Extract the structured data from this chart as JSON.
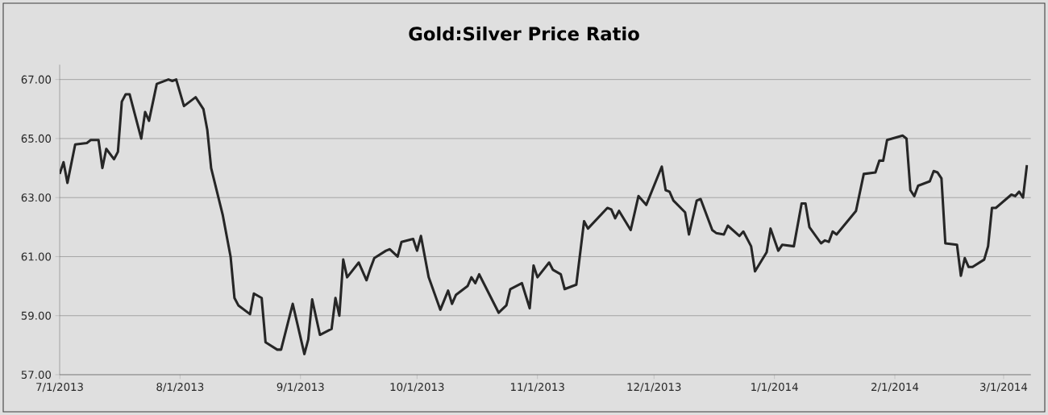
{
  "chart_data": {
    "type": "line",
    "title": "Gold:Silver Price Ratio",
    "x": [
      "2013-07-01",
      "2013-07-02",
      "2013-07-03",
      "2013-07-05",
      "2013-07-08",
      "2013-07-09",
      "2013-07-11",
      "2013-07-12",
      "2013-07-13",
      "2013-07-15",
      "2013-07-16",
      "2013-07-17",
      "2013-07-18",
      "2013-07-19",
      "2013-07-22",
      "2013-07-23",
      "2013-07-24",
      "2013-07-26",
      "2013-07-29",
      "2013-07-30",
      "2013-07-31",
      "2013-08-02",
      "2013-08-05",
      "2013-08-07",
      "2013-08-08",
      "2013-08-09",
      "2013-08-12",
      "2013-08-14",
      "2013-08-15",
      "2013-08-16",
      "2013-08-19",
      "2013-08-20",
      "2013-08-22",
      "2013-08-23",
      "2013-08-26",
      "2013-08-27",
      "2013-08-30",
      "2013-09-02",
      "2013-09-03",
      "2013-09-04",
      "2013-09-06",
      "2013-09-09",
      "2013-09-10",
      "2013-09-11",
      "2013-09-12",
      "2013-09-13",
      "2013-09-16",
      "2013-09-18",
      "2013-09-19",
      "2013-09-20",
      "2013-09-23",
      "2013-09-24",
      "2013-09-26",
      "2013-09-27",
      "2013-09-30",
      "2013-10-01",
      "2013-10-02",
      "2013-10-04",
      "2013-10-07",
      "2013-10-09",
      "2013-10-10",
      "2013-10-11",
      "2013-10-14",
      "2013-10-15",
      "2013-10-16",
      "2013-10-17",
      "2013-10-22",
      "2013-10-24",
      "2013-10-25",
      "2013-10-28",
      "2013-10-30",
      "2013-10-31",
      "2013-11-01",
      "2013-11-04",
      "2013-11-05",
      "2013-11-07",
      "2013-11-08",
      "2013-11-11",
      "2013-11-13",
      "2013-11-14",
      "2013-11-19",
      "2013-11-20",
      "2013-11-21",
      "2013-11-22",
      "2013-11-25",
      "2013-11-27",
      "2013-11-29",
      "2013-12-03",
      "2013-12-04",
      "2013-12-05",
      "2013-12-06",
      "2013-12-09",
      "2013-12-10",
      "2013-12-12",
      "2013-12-13",
      "2013-12-16",
      "2013-12-17",
      "2013-12-19",
      "2013-12-20",
      "2013-12-23",
      "2013-12-24",
      "2013-12-26",
      "2013-12-27",
      "2013-12-30",
      "2013-12-31",
      "2014-01-02",
      "2014-01-03",
      "2014-01-06",
      "2014-01-08",
      "2014-01-09",
      "2014-01-10",
      "2014-01-13",
      "2014-01-14",
      "2014-01-15",
      "2014-01-16",
      "2014-01-17",
      "2014-01-22",
      "2014-01-24",
      "2014-01-27",
      "2014-01-28",
      "2014-01-29",
      "2014-01-30",
      "2014-02-03",
      "2014-02-04",
      "2014-02-05",
      "2014-02-06",
      "2014-02-07",
      "2014-02-10",
      "2014-02-11",
      "2014-02-12",
      "2014-02-13",
      "2014-02-14",
      "2014-02-17",
      "2014-02-18",
      "2014-02-19",
      "2014-02-20",
      "2014-02-21",
      "2014-02-24",
      "2014-02-25",
      "2014-02-26",
      "2014-02-27",
      "2014-03-03",
      "2014-03-04",
      "2014-03-05",
      "2014-03-06",
      "2014-03-07"
    ],
    "series": [
      {
        "color": "#262626",
        "values": [
          63.8,
          64.2,
          63.5,
          64.8,
          64.85,
          64.95,
          64.95,
          64.0,
          64.65,
          64.3,
          64.55,
          66.25,
          66.5,
          66.5,
          65.0,
          65.9,
          65.6,
          66.85,
          67.0,
          66.95,
          67.0,
          66.1,
          66.4,
          66.0,
          65.3,
          64.0,
          62.4,
          61.0,
          59.6,
          59.35,
          59.05,
          59.75,
          59.6,
          58.1,
          57.85,
          57.85,
          59.4,
          57.7,
          58.2,
          59.55,
          58.35,
          58.55,
          59.6,
          59.0,
          60.9,
          60.3,
          60.8,
          60.2,
          60.6,
          60.95,
          61.2,
          61.25,
          61.0,
          61.5,
          61.6,
          61.2,
          61.7,
          60.3,
          59.2,
          59.85,
          59.4,
          59.7,
          60.0,
          60.3,
          60.1,
          60.4,
          59.1,
          59.35,
          59.9,
          60.1,
          59.25,
          60.7,
          60.3,
          60.8,
          60.55,
          60.4,
          59.9,
          60.05,
          62.2,
          61.95,
          62.65,
          62.6,
          62.3,
          62.55,
          61.9,
          63.05,
          62.75,
          64.05,
          63.25,
          63.2,
          62.9,
          62.5,
          61.75,
          62.9,
          62.95,
          61.9,
          61.8,
          61.75,
          62.05,
          61.7,
          61.85,
          61.35,
          60.5,
          61.15,
          61.95,
          61.2,
          61.4,
          61.35,
          62.8,
          62.8,
          62.0,
          61.45,
          61.55,
          61.5,
          61.85,
          61.75,
          62.55,
          63.8,
          63.85,
          64.25,
          64.25,
          64.95,
          65.1,
          65.0,
          63.25,
          63.05,
          63.4,
          63.55,
          63.9,
          63.85,
          63.65,
          61.45,
          61.4,
          60.35,
          60.95,
          60.65,
          60.65,
          60.9,
          61.35,
          62.65,
          62.65,
          63.1,
          63.05,
          63.2,
          63.0,
          64.1
        ]
      }
    ],
    "xlim": [
      "2013-07-01",
      "2014-03-08"
    ],
    "xticks": [
      {
        "value": "2013-07-01",
        "label": "7/1/2013"
      },
      {
        "value": "2013-08-01",
        "label": "8/1/2013"
      },
      {
        "value": "2013-09-01",
        "label": "9/1/2013"
      },
      {
        "value": "2013-10-01",
        "label": "10/1/2013"
      },
      {
        "value": "2013-11-01",
        "label": "11/1/2013"
      },
      {
        "value": "2013-12-01",
        "label": "12/1/2013"
      },
      {
        "value": "2014-01-01",
        "label": "1/1/2014"
      },
      {
        "value": "2014-02-01",
        "label": "2/1/2014"
      },
      {
        "value": "2014-03-01",
        "label": "3/1/2014"
      }
    ],
    "ylim": [
      57,
      67.5
    ],
    "yticks": [
      {
        "value": 57,
        "label": "57.00"
      },
      {
        "value": 59,
        "label": "59.00"
      },
      {
        "value": 61,
        "label": "61.00"
      },
      {
        "value": 63,
        "label": "63.00"
      },
      {
        "value": 65,
        "label": "65.00"
      },
      {
        "value": 67,
        "label": "67.00"
      }
    ],
    "grid": "y",
    "marker": "none",
    "line_style": "solid"
  }
}
